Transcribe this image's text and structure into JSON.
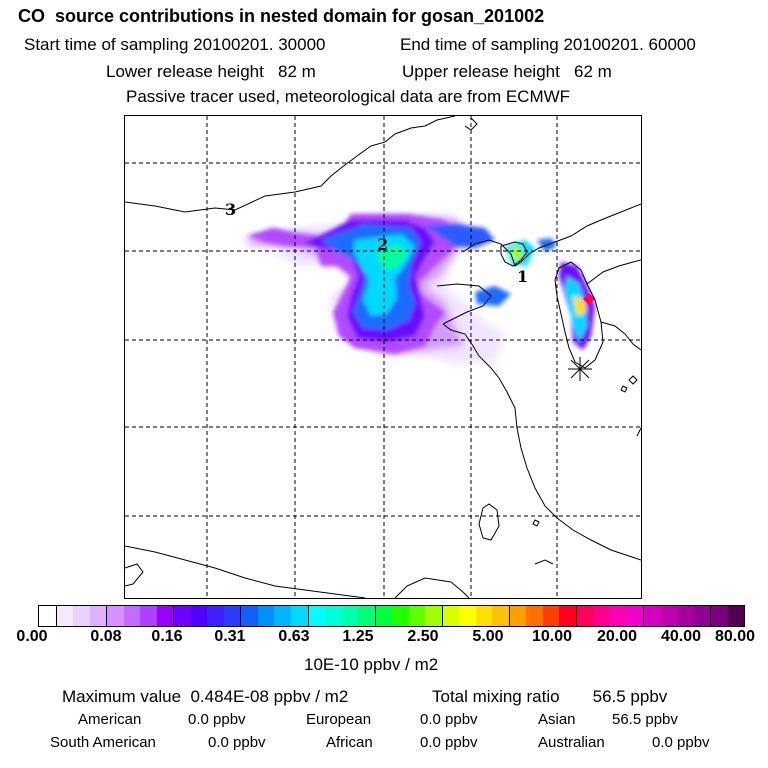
{
  "header": {
    "title": "CO  source contributions in nested domain for gosan_201002",
    "start_time": "Start time of sampling 20100201. 30000",
    "end_time": "End time of sampling 20100201. 60000",
    "lower_height": "Lower release height   82 m",
    "upper_height": "Upper release height   62 m",
    "note": "Passive tracer used, meteorological data are from ECMWF"
  },
  "map": {
    "labels": {
      "contour3": "3",
      "contour2": "2",
      "contour1": "1"
    }
  },
  "colorbar": {
    "unit": "10E-10 ppbv / m2",
    "ticks": [
      "0.00",
      "0.08",
      "0.16",
      "0.31",
      "0.63",
      "1.25",
      "2.50",
      "5.00",
      "10.00",
      "20.00",
      "40.00",
      "80.00"
    ],
    "colors": [
      "#ffffff",
      "#f6e8ff",
      "#ecd0ff",
      "#e0b0ff",
      "#d690ff",
      "#c46cff",
      "#b040ff",
      "#9a00ff",
      "#7000ff",
      "#5000ff",
      "#3e20ff",
      "#2a3cff",
      "#1060ff",
      "#0090ff",
      "#00b6ff",
      "#00daff",
      "#00ffff",
      "#00ffd8",
      "#00ffb0",
      "#00ff78",
      "#00ff40",
      "#20ff00",
      "#60ff00",
      "#a0ff00",
      "#d8ff00",
      "#ffff00",
      "#ffe000",
      "#ffc000",
      "#ffa000",
      "#ff7000",
      "#ff4000",
      "#ff0020",
      "#ff0060",
      "#ff0090",
      "#ff00b4",
      "#f000c8",
      "#d800c0",
      "#c000b0",
      "#a800a0",
      "#900090",
      "#780080",
      "#50004e"
    ]
  },
  "summary": {
    "max_value": "Maximum value  0.484E-08 ppbv / m2",
    "total_mixing": "Total mixing ratio       56.5 ppbv",
    "american_label": "American",
    "american_value": "0.0 ppbv",
    "european_label": "European",
    "european_value": "0.0 ppbv",
    "asian_label": "Asian",
    "asian_value": "56.5 ppbv",
    "south_american_label": "South American",
    "south_american_value": "0.0 ppbv",
    "african_label": "African",
    "african_value": "0.0 ppbv",
    "australian_label": "Australian",
    "australian_value": "0.0 ppbv"
  }
}
